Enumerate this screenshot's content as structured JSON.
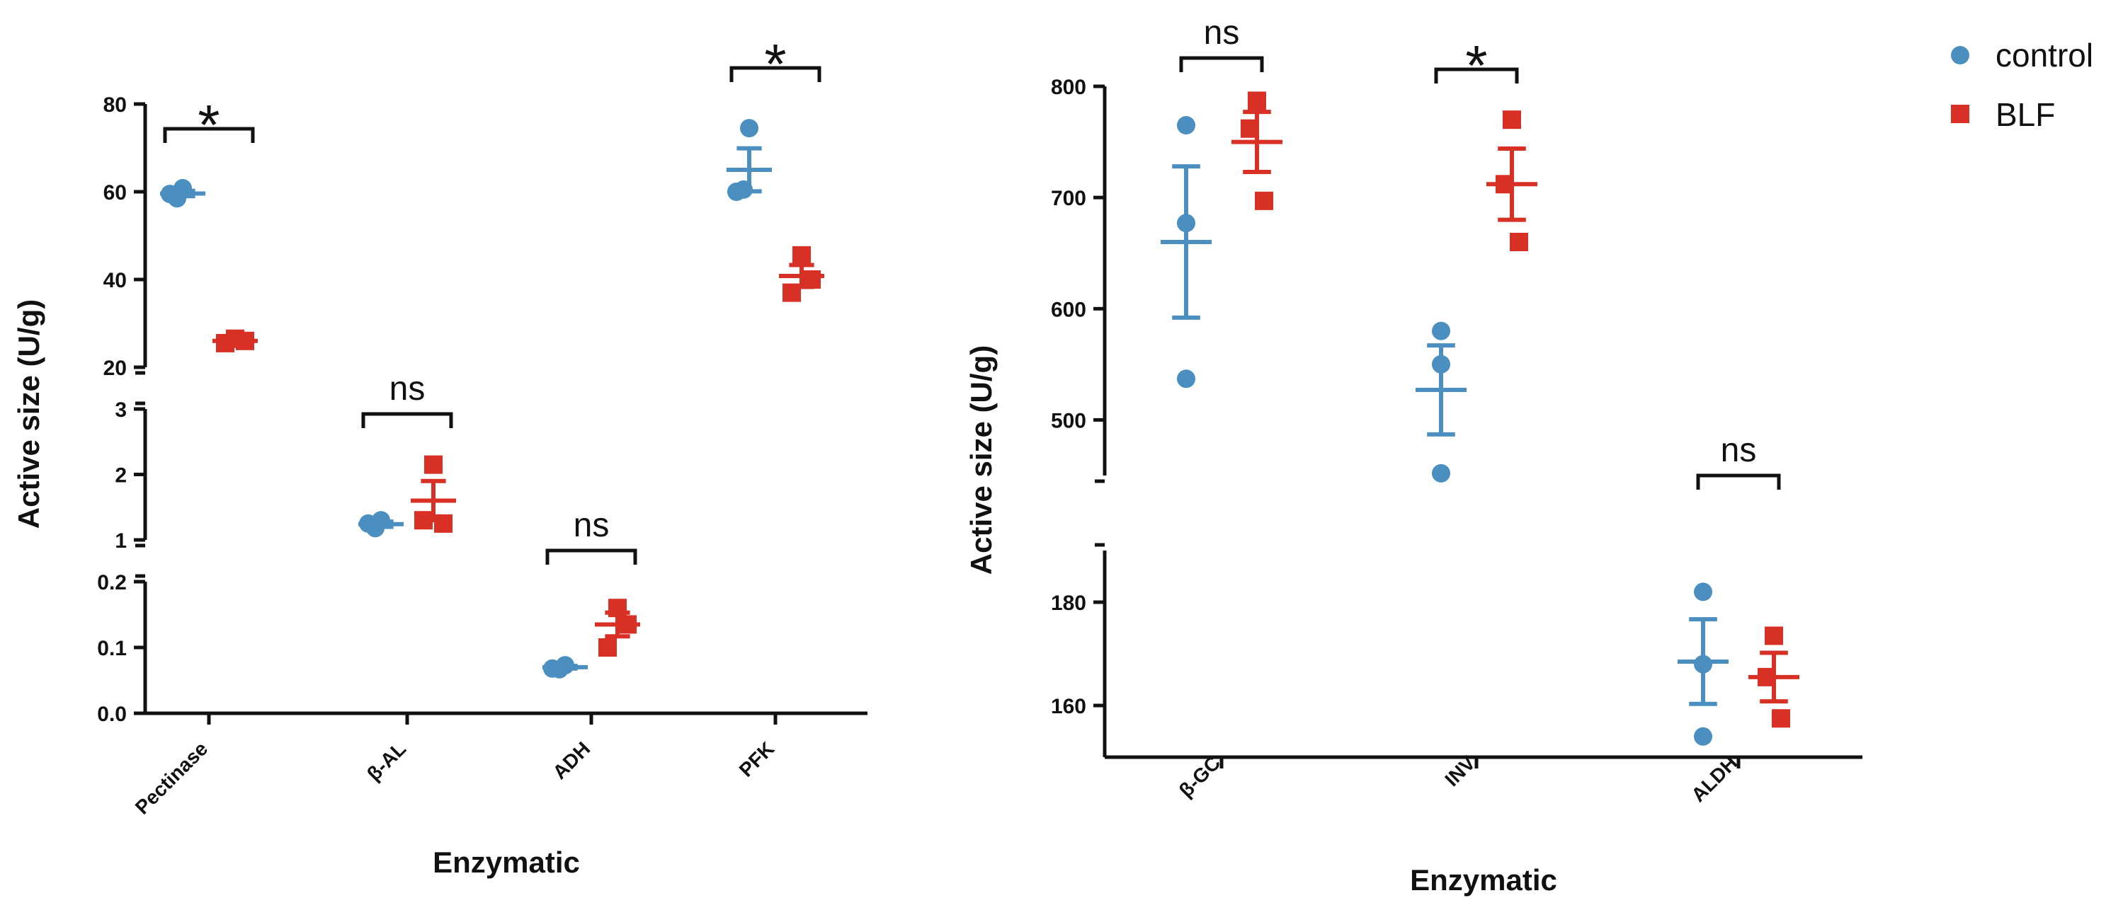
{
  "chart_data": [
    {
      "type": "scatter",
      "title": "",
      "xlabel": "Enzymatic",
      "ylabel": "Active size (U/g)",
      "categories": [
        "Pectinase",
        "β-AL",
        "ADH",
        "PFK"
      ],
      "y_segments": [
        {
          "ylim": [
            0.0,
            0.2
          ],
          "ticks": [
            "0.0",
            "0.1",
            "0.2"
          ]
        },
        {
          "ylim": [
            1,
            3
          ],
          "ticks": [
            "1",
            "2",
            "3"
          ]
        },
        {
          "ylim": [
            20,
            80
          ],
          "ticks": [
            "20",
            "40",
            "60",
            "80"
          ]
        }
      ],
      "series": [
        {
          "name": "control",
          "color": "#4a8fbf",
          "marker": "circle",
          "points": [
            [
              59.5,
              60.8,
              58.5
            ],
            [
              1.25,
              1.3,
              1.18
            ],
            [
              0.068,
              0.073,
              0.067
            ],
            [
              60.0,
              74.5,
              60.5
            ]
          ],
          "mean": [
            59.6,
            1.24,
            0.07,
            65.0
          ],
          "sem": [
            0.6,
            0.04,
            0.002,
            4.9
          ]
        },
        {
          "name": "BLF",
          "color": "#d93025",
          "marker": "square",
          "points": [
            [
              26.5,
              25.5,
              26.0
            ],
            [
              2.15,
              1.3,
              1.25
            ],
            [
              0.16,
              0.1,
              0.135
            ],
            [
              45.5,
              37.0,
              40.0
            ]
          ],
          "mean": [
            26.0,
            1.6,
            0.135,
            40.8
          ],
          "sem": [
            0.3,
            0.3,
            0.018,
            2.5
          ]
        }
      ],
      "significance": [
        "*",
        "ns",
        "ns",
        "*"
      ]
    },
    {
      "type": "scatter",
      "title": "",
      "xlabel": "Enzymatic",
      "ylabel": "Active size (U/g)",
      "categories": [
        "β-GC",
        "INV",
        "ALDH"
      ],
      "y_segments": [
        {
          "ylim": [
            150,
            190
          ],
          "ticks": [
            "160",
            "180"
          ]
        },
        {
          "ylim": [
            450,
            800
          ],
          "ticks": [
            "500",
            "600",
            "700",
            "800"
          ]
        }
      ],
      "series": [
        {
          "name": "control",
          "color": "#4a8fbf",
          "marker": "circle",
          "points": [
            [
              765,
              677,
              537
            ],
            [
              580,
              550,
              452
            ],
            [
              182,
              168,
              154
            ]
          ],
          "mean": [
            660,
            527,
            168.5
          ],
          "sem": [
            68,
            40,
            8.2
          ]
        },
        {
          "name": "BLF",
          "color": "#d93025",
          "marker": "square",
          "points": [
            [
              787,
              762,
              697
            ],
            [
              770,
              712,
              660
            ],
            [
              173.5,
              165.5,
              157.5
            ]
          ],
          "mean": [
            750,
            712,
            165.5
          ],
          "sem": [
            27,
            32,
            4.7
          ]
        }
      ],
      "significance": [
        "ns",
        "*",
        "ns"
      ]
    }
  ],
  "legend": {
    "items": [
      {
        "label": "control",
        "color": "#4a8fbf",
        "marker": "circle"
      },
      {
        "label": "BLF",
        "color": "#d93025",
        "marker": "square"
      }
    ],
    "position": "top-right"
  }
}
